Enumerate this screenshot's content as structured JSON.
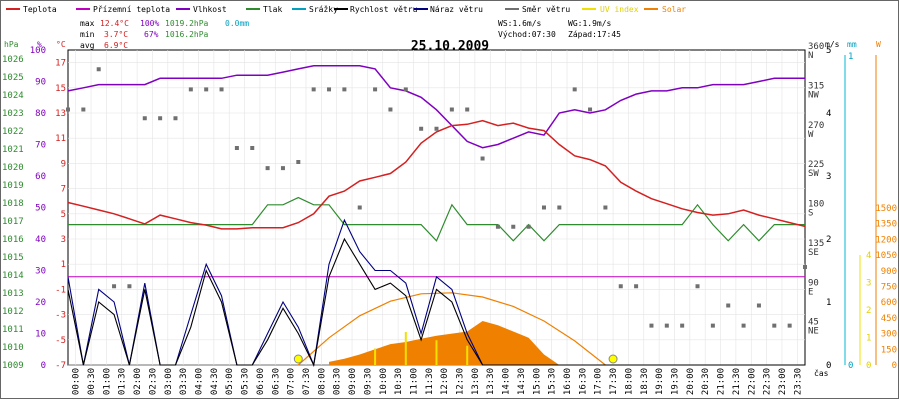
{
  "chart_data": {
    "type": "line",
    "title": "25.10.2009",
    "xlabel": "čas",
    "legend": [
      {
        "name": "Teplota",
        "color": "#d42020"
      },
      {
        "name": "Přízemní teplota",
        "color": "#c000c0"
      },
      {
        "name": "Vlhkost",
        "color": "#8000c0"
      },
      {
        "name": "Tlak",
        "color": "#2e8b2e"
      },
      {
        "name": "Srážky",
        "color": "#00a0c0"
      },
      {
        "name": "Rychlost větru",
        "color": "#000000"
      },
      {
        "name": "Náraz větru",
        "color": "#000080"
      },
      {
        "name": "Směr větru",
        "color": "#707070"
      },
      {
        "name": "UV index",
        "color": "#f0e000"
      },
      {
        "name": "Solar",
        "color": "#f08000"
      }
    ],
    "stats": {
      "max_label": "max",
      "max_temp": "12.4°C",
      "max_hum": "100%",
      "max_press": "1019.2hPa",
      "precip": "0.0mm",
      "min_label": "min",
      "min_temp": "3.7°C",
      "min_hum": "67%",
      "min_press": "1016.2hPa",
      "avg_label": "avg",
      "avg_temp": "6.9°C",
      "ws": "WS:1.6m/s",
      "wg": "WG:1.9m/s",
      "sunrise": "Východ:07:30",
      "sunset": "Západ:17:45"
    },
    "axes": {
      "hpa": {
        "unit": "hPa",
        "ticks": [
          "1009",
          "1010",
          "1011",
          "1012",
          "1013",
          "1014",
          "1015",
          "1016",
          "1017",
          "1018",
          "1019",
          "1020",
          "1021",
          "1022",
          "1023",
          "1024",
          "1025",
          "1026"
        ]
      },
      "pct": {
        "unit": "%",
        "ticks": [
          "0",
          "10",
          "20",
          "30",
          "40",
          "50",
          "60",
          "70",
          "80",
          "90",
          "100"
        ]
      },
      "temp": {
        "unit": "°C",
        "ticks": [
          "-7",
          "-5",
          "-3",
          "-1",
          "1",
          "3",
          "5",
          "7",
          "9",
          "11",
          "13",
          "15",
          "17"
        ]
      },
      "dir": {
        "ticks": [
          "45",
          "NE",
          "90",
          "E",
          "135",
          "SE",
          "180",
          "S",
          "225",
          "SW",
          "270",
          "W",
          "315",
          "NW",
          "360",
          "N"
        ]
      },
      "ms": {
        "unit": "m/s",
        "ticks": [
          "0",
          "1",
          "2",
          "3",
          "4",
          "5"
        ]
      },
      "mm": {
        "unit": "mm",
        "ticks": [
          "0",
          "1"
        ]
      },
      "uv": {
        "ticks": [
          "0",
          "1",
          "2",
          "3",
          "4"
        ]
      },
      "w": {
        "unit": "W",
        "ticks": [
          "0",
          "150",
          "300",
          "450",
          "600",
          "750",
          "900",
          "1050",
          "1200",
          "1350",
          "1500"
        ]
      }
    },
    "x_ticks": [
      "00:00",
      "00:30",
      "01:00",
      "01:30",
      "02:00",
      "02:30",
      "03:00",
      "03:30",
      "04:00",
      "04:30",
      "05:00",
      "05:30",
      "06:00",
      "06:30",
      "07:00",
      "07:30",
      "08:00",
      "08:30",
      "09:00",
      "09:30",
      "10:00",
      "10:30",
      "11:00",
      "11:30",
      "12:00",
      "12:30",
      "13:00",
      "13:30",
      "14:00",
      "14:30",
      "15:00",
      "15:30",
      "16:00",
      "16:30",
      "17:00",
      "17:30",
      "18:00",
      "18:30",
      "19:00",
      "19:30",
      "20:00",
      "20:30",
      "21:00",
      "21:30",
      "22:00",
      "22:30",
      "23:00",
      "23:30"
    ],
    "ranges": {
      "hours": [
        0,
        24
      ],
      "temp_c": [
        -7,
        18
      ],
      "humidity_pct": [
        0,
        100
      ],
      "pressure_hpa": [
        1009,
        1026.5
      ],
      "direction_deg": [
        0,
        360
      ],
      "wind_ms": [
        0,
        5
      ],
      "solar_w": [
        0,
        1600
      ],
      "uv": [
        0,
        4
      ]
    },
    "series": [
      {
        "name": "Teplota",
        "unit": "°C",
        "x": [
          0,
          0.5,
          1,
          1.5,
          2,
          2.5,
          3,
          3.5,
          4,
          4.5,
          5,
          5.5,
          6,
          6.5,
          7,
          7.5,
          8,
          8.5,
          9,
          9.5,
          10,
          10.5,
          11,
          11.5,
          12,
          12.5,
          13,
          13.5,
          14,
          14.5,
          15,
          15.5,
          16,
          16.5,
          17,
          17.5,
          18,
          18.5,
          19,
          19.5,
          20,
          20.5,
          21,
          21.5,
          22,
          22.5,
          23,
          23.5,
          24
        ],
        "y": [
          5.9,
          5.6,
          5.3,
          5.0,
          4.6,
          4.2,
          4.9,
          4.6,
          4.3,
          4.1,
          3.8,
          3.8,
          3.9,
          3.9,
          3.9,
          4.3,
          5.0,
          6.4,
          6.8,
          7.6,
          7.9,
          8.2,
          9.1,
          10.6,
          11.5,
          12.0,
          12.1,
          12.4,
          12.0,
          12.2,
          11.8,
          11.6,
          10.5,
          9.6,
          9.3,
          8.8,
          7.5,
          6.8,
          6.2,
          5.8,
          5.4,
          5.1,
          4.9,
          5.0,
          5.3,
          4.9,
          4.6,
          4.3,
          4.0
        ]
      },
      {
        "name": "Přízemní teplota",
        "unit": "°C",
        "x": [
          0,
          24
        ],
        "y": [
          0,
          0
        ]
      },
      {
        "name": "Vlhkost",
        "unit": "%",
        "x": [
          0,
          0.5,
          1,
          1.5,
          2,
          2.5,
          3,
          3.5,
          4,
          4.5,
          5,
          5.5,
          6,
          6.5,
          7,
          7.5,
          8,
          8.5,
          9,
          9.5,
          10,
          10.5,
          11,
          11.5,
          12,
          12.5,
          13,
          13.5,
          14,
          14.5,
          15,
          15.5,
          16,
          16.5,
          17,
          17.5,
          18,
          18.5,
          19,
          19.5,
          20,
          20.5,
          21,
          21.5,
          22,
          22.5,
          23,
          23.5,
          24
        ],
        "y": [
          87,
          88,
          89,
          89,
          89,
          89,
          91,
          91,
          91,
          91,
          91,
          92,
          92,
          92,
          93,
          94,
          95,
          95,
          95,
          95,
          94,
          88,
          87,
          85,
          81,
          76,
          71,
          69,
          70,
          72,
          74,
          73,
          80,
          81,
          80,
          81,
          84,
          86,
          87,
          87,
          88,
          88,
          89,
          89,
          89,
          90,
          91,
          91,
          91
        ]
      },
      {
        "name": "Tlak",
        "unit": "hPa",
        "x": [
          0,
          1,
          2,
          3,
          4,
          5,
          6,
          6.5,
          7,
          7.5,
          8,
          8.5,
          9,
          9.5,
          10,
          10.5,
          11,
          11.5,
          12,
          12.5,
          13,
          13.5,
          14,
          14.5,
          15,
          15.5,
          16,
          16.5,
          17,
          18,
          19,
          19.5,
          20,
          20.5,
          21,
          21.5,
          22,
          22.5,
          23,
          24
        ],
        "y": [
          1016.8,
          1016.8,
          1016.8,
          1016.8,
          1016.8,
          1016.8,
          1016.8,
          1017.9,
          1017.9,
          1018.3,
          1017.9,
          1017.9,
          1016.8,
          1016.8,
          1016.8,
          1016.8,
          1016.8,
          1016.8,
          1015.9,
          1017.9,
          1016.8,
          1016.8,
          1016.8,
          1015.9,
          1016.8,
          1015.9,
          1016.8,
          1016.8,
          1016.8,
          1016.8,
          1016.8,
          1016.8,
          1016.8,
          1017.9,
          1016.8,
          1015.9,
          1016.8,
          1015.9,
          1016.8,
          1016.8
        ]
      },
      {
        "name": "Rychlost větru",
        "unit": "m/s",
        "x": [
          0,
          0.5,
          1,
          1.5,
          2,
          2.5,
          3,
          3.5,
          4,
          4.5,
          5,
          5.5,
          6,
          6.5,
          7,
          7.5,
          8,
          8.5,
          9,
          9.5,
          10,
          10.5,
          11,
          11.5,
          12,
          12.5,
          13,
          13.5,
          14,
          14.5,
          15,
          15.5,
          16,
          16.5,
          17,
          17.5,
          18,
          18.5,
          19,
          19.5,
          20,
          20.5,
          21,
          21.5,
          22,
          22.5,
          23,
          23.5,
          24
        ],
        "y": [
          1.2,
          0,
          1.0,
          0.8,
          0,
          1.2,
          0,
          0,
          0.6,
          1.5,
          1.0,
          0,
          0,
          0.4,
          0.9,
          0.5,
          0,
          1.4,
          2.0,
          1.6,
          1.2,
          1.3,
          1.1,
          0.4,
          1.2,
          1.0,
          0.4,
          0,
          0,
          0,
          0,
          0,
          0,
          0,
          0,
          0,
          0,
          0,
          0,
          0,
          0,
          0,
          0,
          0,
          0,
          0,
          0,
          0,
          0
        ]
      },
      {
        "name": "Náraz větru",
        "unit": "m/s",
        "x": [
          0,
          0.5,
          1,
          1.5,
          2,
          2.5,
          3,
          3.5,
          4,
          4.5,
          5,
          5.5,
          6,
          6.5,
          7,
          7.5,
          8,
          8.5,
          9,
          9.5,
          10,
          10.5,
          11,
          11.5,
          12,
          12.5,
          13,
          13.5,
          14,
          14.5,
          15,
          15.5,
          16,
          16.5,
          17,
          17.5,
          18,
          18.5,
          19,
          19.5,
          20,
          20.5,
          21,
          21.5,
          22,
          22.5,
          23,
          23.5,
          24
        ],
        "y": [
          1.4,
          0,
          1.2,
          1.0,
          0,
          1.3,
          0,
          0,
          0.8,
          1.6,
          1.1,
          0,
          0,
          0.5,
          1.0,
          0.6,
          0,
          1.6,
          2.3,
          1.8,
          1.5,
          1.5,
          1.3,
          0.5,
          1.4,
          1.2,
          0.5,
          0,
          0,
          0,
          0,
          0,
          0,
          0,
          0,
          0,
          0,
          0,
          0,
          0,
          0,
          0,
          0,
          0,
          0,
          0,
          0,
          0,
          0
        ]
      },
      {
        "name": "Směr větru",
        "unit": "°",
        "x": [
          0,
          0.5,
          1,
          1.5,
          2,
          2.5,
          3,
          3.5,
          4,
          4.5,
          5,
          5.5,
          6,
          6.5,
          7,
          7.5,
          8,
          8.5,
          9,
          9.5,
          10,
          10.5,
          11,
          11.5,
          12,
          12.5,
          13,
          13.5,
          14,
          14.5,
          15,
          15.5,
          16,
          16.5,
          17,
          17.5,
          18,
          18.5,
          19,
          19.5,
          20,
          20.5,
          21,
          21.5,
          22,
          22.5,
          23,
          23.5,
          24
        ],
        "y": [
          292,
          292,
          338,
          90,
          90,
          282,
          282,
          282,
          315,
          315,
          315,
          248,
          248,
          225,
          225,
          232,
          315,
          315,
          315,
          180,
          315,
          292,
          315,
          270,
          270,
          292,
          292,
          236,
          158,
          158,
          158,
          180,
          180,
          315,
          292,
          180,
          90,
          90,
          45,
          45,
          45,
          90,
          45,
          68,
          45,
          68,
          45,
          45,
          112
        ]
      },
      {
        "name": "Solar",
        "unit": "W/m²",
        "x": [
          8.5,
          9,
          9.5,
          10,
          10.5,
          11,
          11.5,
          12,
          12.5,
          13,
          13.5,
          14,
          14.5,
          15,
          15.5,
          16
        ],
        "y": [
          30,
          60,
          100,
          150,
          200,
          220,
          250,
          280,
          300,
          320,
          420,
          380,
          320,
          260,
          100,
          0
        ]
      },
      {
        "name": "Solar (teoretický)",
        "unit": "W/m²",
        "x": [
          7.5,
          8.5,
          9.5,
          10.5,
          11.5,
          12.5,
          13.5,
          14.5,
          15.5,
          16.5,
          17.5
        ],
        "y": [
          0,
          260,
          470,
          610,
          680,
          690,
          650,
          560,
          420,
          230,
          0
        ]
      },
      {
        "name": "UV index",
        "unit": "",
        "x": [
          10,
          11,
          12,
          13
        ],
        "y": [
          0.6,
          1.2,
          0.9,
          0.7
        ]
      }
    ]
  }
}
